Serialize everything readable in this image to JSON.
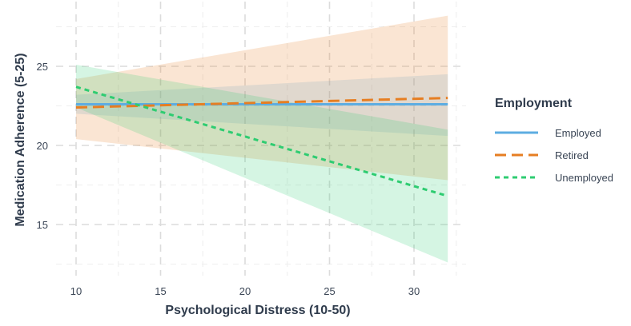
{
  "chart_data": {
    "type": "line",
    "title": "",
    "xlabel": "Psychological Distress (10-50)",
    "ylabel": "Medication Adherence (5-25)",
    "xlim": [
      10,
      32
    ],
    "ylim": [
      12,
      29
    ],
    "x_ticks": [
      10,
      15,
      20,
      25,
      30
    ],
    "y_ticks": [
      15,
      20,
      25
    ],
    "grid": true,
    "legend": {
      "title": "Employment",
      "placement": "right"
    },
    "series": [
      {
        "name": "Employed",
        "color": "#5dade2",
        "style": "solid",
        "x": [
          10,
          32
        ],
        "y": [
          22.6,
          22.6
        ],
        "ci_lower": [
          22.0,
          20.6
        ],
        "ci_upper": [
          23.2,
          24.5
        ]
      },
      {
        "name": "Retired",
        "color": "#e67e22",
        "style": "dashed",
        "x": [
          10,
          32
        ],
        "y": [
          22.4,
          23.0
        ],
        "ci_lower": [
          20.4,
          17.8
        ],
        "ci_upper": [
          24.2,
          28.2
        ]
      },
      {
        "name": "Unemployed",
        "color": "#2ecc71",
        "style": "dotted",
        "x": [
          10,
          32
        ],
        "y": [
          23.7,
          16.8
        ],
        "ci_lower": [
          22.4,
          12.6
        ],
        "ci_upper": [
          25.1,
          21.0
        ]
      }
    ]
  }
}
